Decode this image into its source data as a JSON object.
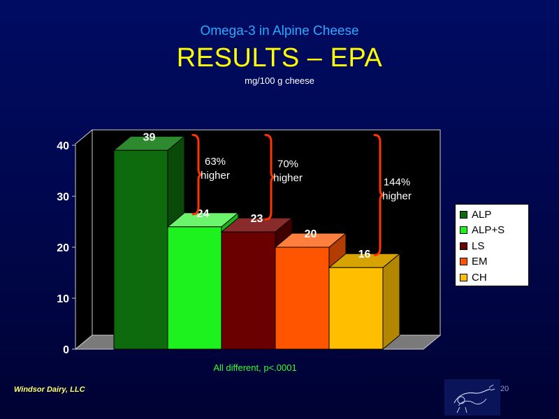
{
  "slide": {
    "subtitle": "Omega-3 in Alpine Cheese",
    "title": "RESULTS – EPA",
    "unit": "mg/100 g cheese",
    "footnote": "All different, p<.0001",
    "company": "Windsor Dairy, LLC",
    "page_number": "20"
  },
  "chart_data": {
    "type": "bar",
    "categories": [
      "ALP",
      "ALP+S",
      "LS",
      "EM",
      "CH"
    ],
    "values": [
      39,
      24,
      23,
      20,
      16
    ],
    "data_labels": [
      "39",
      "24",
      "23",
      "20",
      "16"
    ],
    "ylim": [
      0,
      40
    ],
    "yticks": [
      0,
      10,
      20,
      30,
      40
    ],
    "ytick_labels": [
      "0",
      "10",
      "20",
      "30",
      "40"
    ],
    "legend": [
      "ALP",
      "ALP+S",
      "LS",
      "EM",
      "CH"
    ],
    "legend_position": "right",
    "grid": false,
    "colors": [
      "#0d6b0d",
      "#1ef21e",
      "#6b0000",
      "#ff5500",
      "#ffbf00"
    ],
    "side_colors": [
      "#094a09",
      "#17b317",
      "#400000",
      "#b33c00",
      "#b38600"
    ],
    "top_colors": [
      "#2e8a2e",
      "#6cf56c",
      "#8a2b2b",
      "#ff7f3f",
      "#d6a300"
    ],
    "annotations": [
      {
        "text_line1": "63%",
        "text_line2": "higher",
        "from_index": 0,
        "to_index": 1
      },
      {
        "text_line1": "70%",
        "text_line2": "higher",
        "from_index": 0,
        "to_index": 2
      },
      {
        "text_line1": "144%",
        "text_line2": "higher",
        "from_index": 0,
        "to_index": 4
      }
    ],
    "bracket_color": "#ff3300"
  }
}
